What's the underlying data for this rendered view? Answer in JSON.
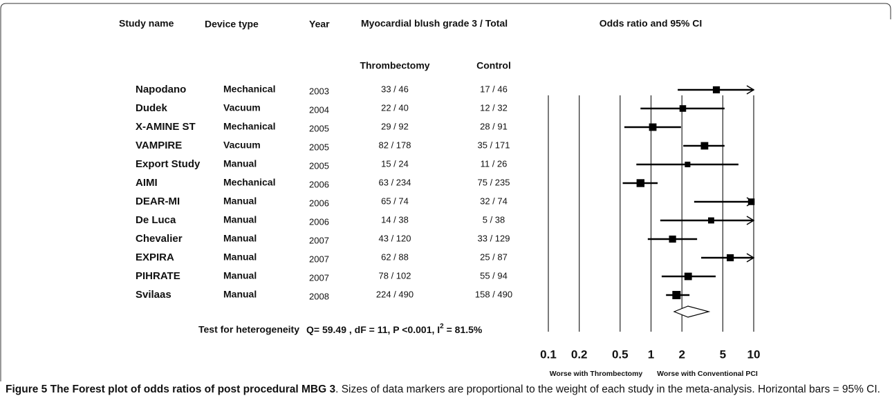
{
  "chart_data": {
    "type": "forest",
    "title": "Odds ratio and 95% CI",
    "headers": {
      "study": "Study name",
      "device": "Device type",
      "year": "Year",
      "outcome": "Myocardial blush grade 3 / Total",
      "thrombectomy": "Thrombectomy",
      "control": "Control"
    },
    "studies": [
      {
        "name": "Napodano",
        "device": "Mechanical",
        "year": 2003,
        "thrombectomy": "33 / 46",
        "control": "17 / 46",
        "or": 4.33,
        "ci": [
          1.82,
          11
        ],
        "weight": 8
      },
      {
        "name": "Dudek",
        "device": "Vacuum",
        "year": 2004,
        "thrombectomy": "22 / 40",
        "control": "12 / 32",
        "or": 2.04,
        "ci": [
          0.79,
          5.2
        ],
        "weight": 7
      },
      {
        "name": "X-AMINE ST",
        "device": "Mechanical",
        "year": 2005,
        "thrombectomy": "29 / 92",
        "control": "28 / 91",
        "or": 1.04,
        "ci": [
          0.55,
          1.96
        ],
        "weight": 9
      },
      {
        "name": "VAMPIRE",
        "device": "Vacuum",
        "year": 2005,
        "thrombectomy": "82 / 178",
        "control": "35 / 171",
        "or": 3.32,
        "ci": [
          2.06,
          5.2
        ],
        "weight": 9
      },
      {
        "name": "Export Study",
        "device": "Manual",
        "year": 2005,
        "thrombectomy": "15 / 24",
        "control": "11 / 26",
        "or": 2.27,
        "ci": [
          0.72,
          7.1
        ],
        "weight": 5
      },
      {
        "name": "AIMI",
        "device": "Mechanical",
        "year": 2006,
        "thrombectomy": "63 / 234",
        "control": "75 / 235",
        "or": 0.79,
        "ci": [
          0.53,
          1.16
        ],
        "weight": 10
      },
      {
        "name": "DEAR-MI",
        "device": "Manual",
        "year": 2006,
        "thrombectomy": "65 / 74",
        "control": "32 / 74",
        "or": 9.48,
        "ci": [
          2.63,
          20
        ],
        "weight": 7
      },
      {
        "name": "De Luca",
        "device": "Manual",
        "year": 2006,
        "thrombectomy": "14 / 38",
        "control": "5 / 38",
        "or": 3.85,
        "ci": [
          1.23,
          11
        ],
        "weight": 6
      },
      {
        "name": "Chevalier",
        "device": "Manual",
        "year": 2007,
        "thrombectomy": "43 / 120",
        "control": "33 / 129",
        "or": 1.62,
        "ci": [
          0.93,
          2.81
        ],
        "weight": 8
      },
      {
        "name": "EXPIRA",
        "device": "Manual",
        "year": 2007,
        "thrombectomy": "62 / 88",
        "control": "25 / 87",
        "or": 5.91,
        "ci": [
          3.08,
          11
        ],
        "weight": 8
      },
      {
        "name": "PIHRATE",
        "device": "Manual",
        "year": 2007,
        "thrombectomy": "78 / 102",
        "control": "55 / 94",
        "or": 2.3,
        "ci": [
          1.27,
          4.26
        ],
        "weight": 9
      },
      {
        "name": "Svilaas",
        "device": "Manual",
        "year": 2008,
        "thrombectomy": "224 / 490",
        "control": "158 / 490",
        "or": 1.77,
        "ci": [
          1.4,
          2.37
        ],
        "weight": 11
      }
    ],
    "pooled": {
      "or": 2.29,
      "ci": [
        1.68,
        3.65
      ]
    },
    "heterogeneity": {
      "label": "Test for heterogeneity",
      "text": "Q= 59.49 , dF = 11, P <0.001, I",
      "sup": "2",
      "tail": " = 81.5%"
    },
    "log_scale": true,
    "xlim": [
      0.1,
      10
    ],
    "xticks": [
      0.1,
      0.2,
      0.5,
      1,
      2,
      5,
      10
    ],
    "x_labels": {
      "left": "Worse with Thrombectomy",
      "right": "Worse with Conventional PCI"
    },
    "color": "#000000"
  },
  "caption": {
    "label": "Figure 5",
    "title": "The Forest plot of odds ratios of post procedural MBG 3",
    "text": ". Sizes of data markers are proportional to the weight of each study in the meta-analysis. Horizontal bars = 95% CI."
  }
}
